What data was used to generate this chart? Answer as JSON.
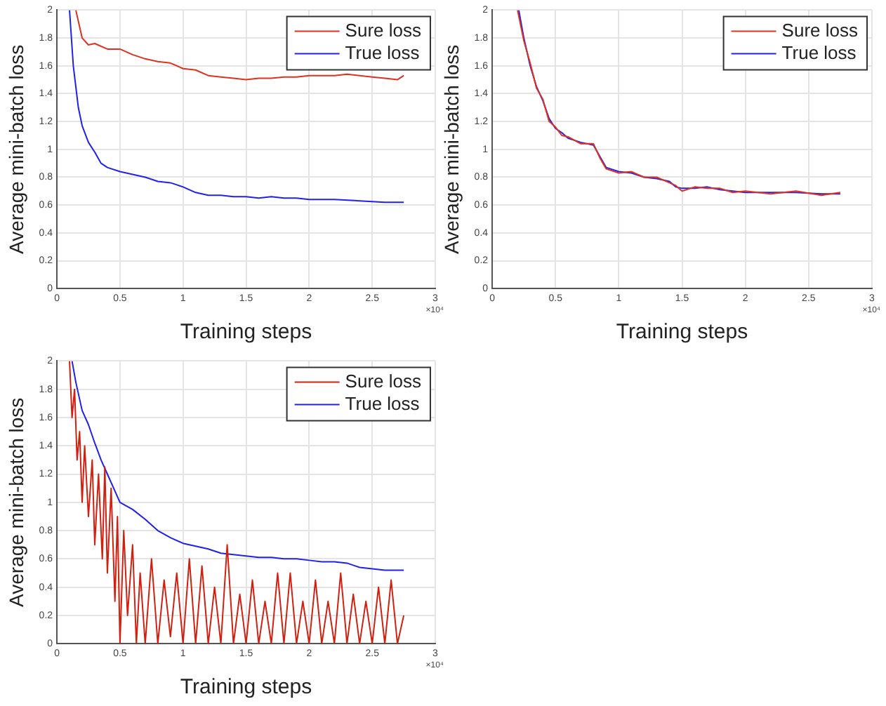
{
  "chart_data": [
    {
      "type": "line",
      "xlabel": "Training steps",
      "ylabel": "Average mini-batch loss",
      "annotations": [
        "×10⁴"
      ],
      "xlim": [
        0,
        3
      ],
      "xticks": [
        0,
        0.5,
        1,
        1.5,
        2,
        2.5,
        3
      ],
      "ylim": [
        0,
        2
      ],
      "yticks": [
        0,
        0.2,
        0.4,
        0.6,
        0.8,
        1,
        1.2,
        1.4,
        1.6,
        1.8,
        2
      ],
      "grid": true,
      "legend": "top right",
      "marker": "none",
      "line_style": "solid",
      "series": [
        {
          "name": "Sure loss",
          "color": "#e03020",
          "x": [
            0.15,
            0.2,
            0.25,
            0.3,
            0.4,
            0.5,
            0.6,
            0.7,
            0.8,
            0.9,
            1.0,
            1.1,
            1.2,
            1.3,
            1.4,
            1.5,
            1.6,
            1.7,
            1.8,
            1.9,
            2.0,
            2.1,
            2.2,
            2.3,
            2.4,
            2.5,
            2.6,
            2.7,
            2.75
          ],
          "values": [
            2,
            1.8,
            1.75,
            1.76,
            1.72,
            1.72,
            1.68,
            1.65,
            1.63,
            1.62,
            1.58,
            1.57,
            1.53,
            1.52,
            1.51,
            1.5,
            1.51,
            1.51,
            1.52,
            1.52,
            1.53,
            1.53,
            1.53,
            1.54,
            1.53,
            1.52,
            1.51,
            1.5,
            1.53
          ]
        },
        {
          "name": "True loss",
          "color": "#2020f0",
          "x": [
            0.1,
            0.13,
            0.17,
            0.2,
            0.25,
            0.3,
            0.35,
            0.4,
            0.5,
            0.6,
            0.7,
            0.8,
            0.9,
            1.0,
            1.1,
            1.2,
            1.3,
            1.4,
            1.5,
            1.6,
            1.7,
            1.8,
            1.9,
            2.0,
            2.2,
            2.4,
            2.6,
            2.75
          ],
          "values": [
            2,
            1.6,
            1.3,
            1.17,
            1.05,
            0.98,
            0.9,
            0.87,
            0.84,
            0.82,
            0.8,
            0.77,
            0.76,
            0.73,
            0.69,
            0.67,
            0.67,
            0.66,
            0.66,
            0.65,
            0.66,
            0.65,
            0.65,
            0.64,
            0.64,
            0.63,
            0.62,
            0.62
          ]
        }
      ]
    },
    {
      "type": "line",
      "xlabel": "Training steps",
      "ylabel": "Average mini-batch loss",
      "annotations": [
        "×10⁴"
      ],
      "xlim": [
        0,
        3
      ],
      "xticks": [
        0,
        0.5,
        1,
        1.5,
        2,
        2.5,
        3
      ],
      "ylim": [
        0,
        2
      ],
      "yticks": [
        0,
        0.2,
        0.4,
        0.6,
        0.8,
        1,
        1.2,
        1.4,
        1.6,
        1.8,
        2
      ],
      "grid": true,
      "legend": "top right",
      "marker": "none",
      "line_style": "solid",
      "series": [
        {
          "name": "Sure loss",
          "color": "#e03020",
          "x": [
            0.2,
            0.25,
            0.3,
            0.35,
            0.4,
            0.45,
            0.5,
            0.55,
            0.6,
            0.7,
            0.8,
            0.85,
            0.9,
            1.0,
            1.1,
            1.2,
            1.3,
            1.4,
            1.45,
            1.5,
            1.6,
            1.7,
            1.8,
            1.9,
            2.0,
            2.2,
            2.4,
            2.6,
            2.75
          ],
          "values": [
            2,
            1.78,
            1.62,
            1.44,
            1.36,
            1.2,
            1.16,
            1.1,
            1.09,
            1.04,
            1.04,
            0.94,
            0.86,
            0.83,
            0.84,
            0.8,
            0.8,
            0.76,
            0.74,
            0.7,
            0.73,
            0.72,
            0.72,
            0.69,
            0.7,
            0.68,
            0.7,
            0.67,
            0.69
          ]
        },
        {
          "name": "True loss",
          "color": "#2020f0",
          "x": [
            0.21,
            0.25,
            0.3,
            0.35,
            0.4,
            0.45,
            0.5,
            0.55,
            0.6,
            0.7,
            0.8,
            0.85,
            0.9,
            1.0,
            1.1,
            1.2,
            1.3,
            1.4,
            1.45,
            1.5,
            1.6,
            1.7,
            1.8,
            1.9,
            2.0,
            2.2,
            2.4,
            2.6,
            2.75
          ],
          "values": [
            2,
            1.8,
            1.6,
            1.45,
            1.35,
            1.22,
            1.15,
            1.12,
            1.08,
            1.05,
            1.03,
            0.95,
            0.87,
            0.84,
            0.83,
            0.8,
            0.79,
            0.77,
            0.73,
            0.72,
            0.72,
            0.73,
            0.71,
            0.7,
            0.69,
            0.69,
            0.69,
            0.68,
            0.68
          ]
        }
      ]
    },
    {
      "type": "line",
      "xlabel": "Training steps",
      "ylabel": "Average mini-batch loss",
      "annotations": [
        "×10⁴"
      ],
      "xlim": [
        0,
        3
      ],
      "xticks": [
        0,
        0.5,
        1,
        1.5,
        2,
        2.5,
        3
      ],
      "ylim": [
        0,
        2
      ],
      "yticks": [
        0,
        0.2,
        0.4,
        0.6,
        0.8,
        1,
        1.2,
        1.4,
        1.6,
        1.8,
        2
      ],
      "grid": true,
      "legend": "top right",
      "marker": "none",
      "line_style": "solid",
      "series": [
        {
          "name": "Sure loss",
          "color": "#d02010",
          "x": [
            0.1,
            0.12,
            0.14,
            0.16,
            0.18,
            0.2,
            0.22,
            0.25,
            0.28,
            0.3,
            0.33,
            0.36,
            0.38,
            0.4,
            0.43,
            0.46,
            0.48,
            0.5,
            0.53,
            0.56,
            0.6,
            0.63,
            0.66,
            0.7,
            0.75,
            0.8,
            0.85,
            0.9,
            0.95,
            1.0,
            1.05,
            1.1,
            1.15,
            1.2,
            1.25,
            1.3,
            1.35,
            1.4,
            1.45,
            1.5,
            1.55,
            1.6,
            1.65,
            1.7,
            1.75,
            1.8,
            1.85,
            1.9,
            1.95,
            2.0,
            2.05,
            2.1,
            2.15,
            2.2,
            2.25,
            2.3,
            2.35,
            2.4,
            2.45,
            2.5,
            2.55,
            2.6,
            2.65,
            2.7,
            2.75
          ],
          "values": [
            2,
            1.6,
            1.8,
            1.3,
            1.5,
            1.0,
            1.4,
            0.9,
            1.3,
            0.7,
            1.2,
            0.6,
            1.25,
            0.5,
            1.1,
            0.3,
            0.9,
            0,
            0.8,
            0.2,
            0.7,
            0,
            0.5,
            0,
            0.6,
            0,
            0.45,
            0.05,
            0.5,
            0,
            0.6,
            0,
            0.55,
            0,
            0.4,
            0,
            0.7,
            0,
            0.35,
            0,
            0.45,
            0,
            0.3,
            0,
            0.5,
            0,
            0.5,
            0,
            0.3,
            0,
            0.45,
            0,
            0.3,
            0,
            0.5,
            0,
            0.35,
            0,
            0.3,
            0,
            0.4,
            0,
            0.45,
            0,
            0.2
          ]
        },
        {
          "name": "True loss",
          "color": "#2020f0",
          "x": [
            0.12,
            0.15,
            0.2,
            0.25,
            0.3,
            0.35,
            0.4,
            0.45,
            0.5,
            0.6,
            0.7,
            0.8,
            0.9,
            1.0,
            1.1,
            1.2,
            1.3,
            1.4,
            1.5,
            1.6,
            1.7,
            1.8,
            1.9,
            2.0,
            2.1,
            2.2,
            2.3,
            2.4,
            2.5,
            2.6,
            2.75
          ],
          "values": [
            2,
            1.85,
            1.65,
            1.55,
            1.42,
            1.3,
            1.2,
            1.1,
            1.0,
            0.95,
            0.88,
            0.8,
            0.75,
            0.71,
            0.69,
            0.67,
            0.64,
            0.63,
            0.62,
            0.61,
            0.61,
            0.6,
            0.6,
            0.59,
            0.58,
            0.58,
            0.57,
            0.54,
            0.53,
            0.52,
            0.52
          ]
        }
      ]
    }
  ]
}
